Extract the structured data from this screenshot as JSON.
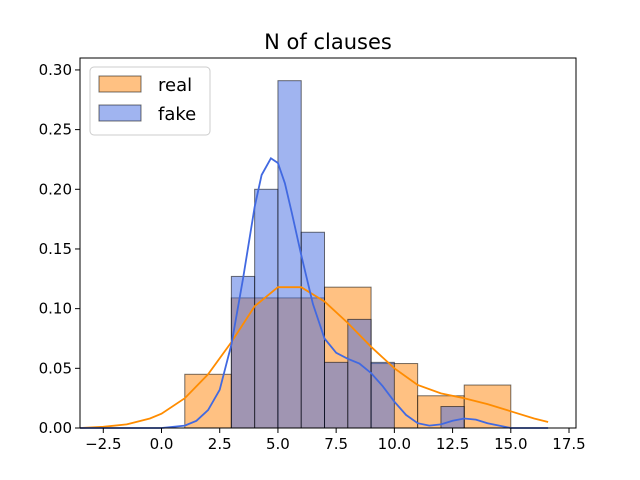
{
  "chart_data": {
    "type": "bar",
    "title": "N of clauses",
    "xlabel": "",
    "ylabel": "",
    "xlim": [
      -3.5,
      17.8
    ],
    "ylim": [
      0,
      0.31
    ],
    "x_ticks": [
      -2.5,
      0.0,
      2.5,
      5.0,
      7.5,
      10.0,
      12.5,
      15.0,
      17.5
    ],
    "x_tick_labels": [
      "−2.5",
      "0.0",
      "2.5",
      "5.0",
      "7.5",
      "10.0",
      "12.5",
      "15.0",
      "17.5"
    ],
    "y_ticks": [
      0.0,
      0.05,
      0.1,
      0.15,
      0.2,
      0.25,
      0.3
    ],
    "y_tick_labels": [
      "0.00",
      "0.05",
      "0.10",
      "0.15",
      "0.20",
      "0.25",
      "0.30"
    ],
    "grid": false,
    "legend_position": "top-left",
    "series": [
      {
        "name": "real",
        "color": "#ffa64d",
        "line_color": "#ff8c00",
        "bins": [
          {
            "x0": 1.0,
            "x1": 3.0,
            "y": 0.045
          },
          {
            "x0": 3.0,
            "x1": 5.0,
            "y": 0.109
          },
          {
            "x0": 5.0,
            "x1": 7.0,
            "y": 0.109
          },
          {
            "x0": 7.0,
            "x1": 9.0,
            "y": 0.118
          },
          {
            "x0": 9.0,
            "x1": 11.0,
            "y": 0.054
          },
          {
            "x0": 11.0,
            "x1": 13.0,
            "y": 0.027
          },
          {
            "x0": 13.0,
            "x1": 15.0,
            "y": 0.036
          }
        ],
        "kde": [
          [
            -3.5,
            0.0
          ],
          [
            -2.5,
            0.001
          ],
          [
            -1.5,
            0.003
          ],
          [
            -0.5,
            0.008
          ],
          [
            0.0,
            0.012
          ],
          [
            1.0,
            0.025
          ],
          [
            2.0,
            0.045
          ],
          [
            3.0,
            0.072
          ],
          [
            4.0,
            0.102
          ],
          [
            5.0,
            0.118
          ],
          [
            6.0,
            0.118
          ],
          [
            7.0,
            0.106
          ],
          [
            8.0,
            0.088
          ],
          [
            9.0,
            0.068
          ],
          [
            10.0,
            0.05
          ],
          [
            11.0,
            0.036
          ],
          [
            12.0,
            0.029
          ],
          [
            13.0,
            0.025
          ],
          [
            14.0,
            0.02
          ],
          [
            15.0,
            0.014
          ],
          [
            16.0,
            0.008
          ],
          [
            16.6,
            0.005
          ]
        ]
      },
      {
        "name": "fake",
        "color": "#4169e1",
        "line_color": "#4169e1",
        "bins": [
          {
            "x0": 3.0,
            "x1": 4.0,
            "y": 0.127
          },
          {
            "x0": 4.0,
            "x1": 5.0,
            "y": 0.2
          },
          {
            "x0": 5.0,
            "x1": 6.0,
            "y": 0.291
          },
          {
            "x0": 6.0,
            "x1": 7.0,
            "y": 0.164
          },
          {
            "x0": 7.0,
            "x1": 8.0,
            "y": 0.055
          },
          {
            "x0": 8.0,
            "x1": 9.0,
            "y": 0.091
          },
          {
            "x0": 9.0,
            "x1": 10.0,
            "y": 0.055
          },
          {
            "x0": 12.0,
            "x1": 13.0,
            "y": 0.018
          }
        ],
        "kde": [
          [
            -3.5,
            0.0
          ],
          [
            0.0,
            0.0
          ],
          [
            1.0,
            0.002
          ],
          [
            1.5,
            0.006
          ],
          [
            2.0,
            0.015
          ],
          [
            2.5,
            0.032
          ],
          [
            3.0,
            0.07
          ],
          [
            3.5,
            0.125
          ],
          [
            4.0,
            0.185
          ],
          [
            4.3,
            0.212
          ],
          [
            4.7,
            0.226
          ],
          [
            5.0,
            0.222
          ],
          [
            5.3,
            0.205
          ],
          [
            5.6,
            0.18
          ],
          [
            6.0,
            0.145
          ],
          [
            6.5,
            0.104
          ],
          [
            7.0,
            0.075
          ],
          [
            7.5,
            0.063
          ],
          [
            8.0,
            0.058
          ],
          [
            8.5,
            0.054
          ],
          [
            9.0,
            0.046
          ],
          [
            9.5,
            0.035
          ],
          [
            10.0,
            0.022
          ],
          [
            10.5,
            0.011
          ],
          [
            11.0,
            0.004
          ],
          [
            11.5,
            0.002
          ],
          [
            12.0,
            0.003
          ],
          [
            12.5,
            0.006
          ],
          [
            13.0,
            0.008
          ],
          [
            13.5,
            0.007
          ],
          [
            14.0,
            0.004
          ],
          [
            14.5,
            0.002
          ],
          [
            15.0,
            0.0
          ],
          [
            16.6,
            0.0
          ]
        ]
      }
    ]
  }
}
